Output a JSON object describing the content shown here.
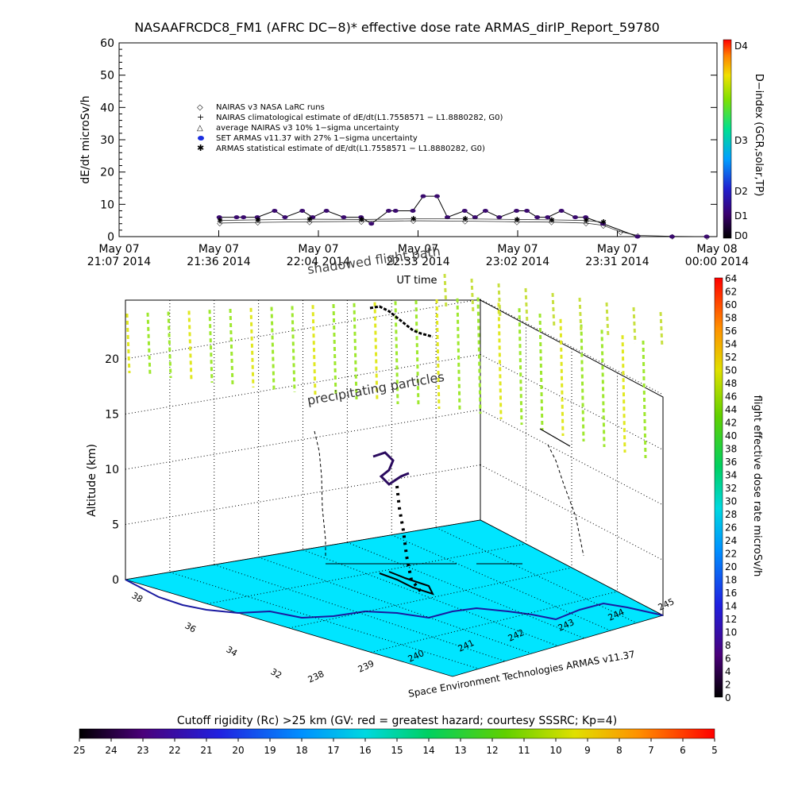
{
  "header": {
    "title": "NASAAFRCDC8_FM1 (AFRC DC−8)* effective dose rate ARMAS_dirIP_Report_59780"
  },
  "top_chart": {
    "ylabel": "dE/dt microSv/h",
    "xlabel": "UT time",
    "y_ticks": [
      "0",
      "10",
      "20",
      "30",
      "40",
      "50",
      "60"
    ],
    "x_ticks": [
      {
        "l1": "May 07",
        "l2": "21:07 2014"
      },
      {
        "l1": "May 07",
        "l2": "21:36 2014"
      },
      {
        "l1": "May 07",
        "l2": "22:04 2014"
      },
      {
        "l1": "May 07",
        "l2": "22:33 2014"
      },
      {
        "l1": "May 07",
        "l2": "23:02 2014"
      },
      {
        "l1": "May 07",
        "l2": "23:31 2014"
      },
      {
        "l1": "May 08",
        "l2": "00:00 2014"
      }
    ],
    "legend": [
      "NAIRAS v3 NASA LaRC runs",
      "NAIRAS climatological estimate of dE/dt(L1.7558571 − L1.8880282, G0)",
      "average NAIRAS v3 10% 1−sigma uncertainty",
      "SET ARMAS v11.37 with 27% 1−sigma uncertainty",
      "ARMAS statistical estimate of dE/dt(L1.7558571 − L1.8880282, G0)"
    ],
    "dindex_label": "D−index (GCR,solar,TP)",
    "dindex_ticks": [
      "D4",
      "D3",
      "D2",
      "D1",
      "D0"
    ],
    "overlay_labels": [
      "shadowed flight path"
    ]
  },
  "scene": {
    "altitude_label": "Altitude (km)",
    "altitude_ticks": [
      "0",
      "5",
      "10",
      "15",
      "20"
    ],
    "lat_ticks": [
      "38",
      "36",
      "34",
      "32"
    ],
    "lon_ticks": [
      "238",
      "239",
      "240",
      "241",
      "242",
      "243",
      "244",
      "245"
    ],
    "annotation": "precipitating particles",
    "credit": "Space Environment Technologies ARMAS v11.37",
    "dose_label": "flight effective dose rate microSv/h",
    "dose_ticks": [
      "0",
      "2",
      "4",
      "6",
      "8",
      "10",
      "12",
      "14",
      "16",
      "18",
      "20",
      "22",
      "24",
      "26",
      "28",
      "30",
      "32",
      "34",
      "36",
      "38",
      "40",
      "42",
      "44",
      "46",
      "48",
      "50",
      "52",
      "54",
      "56",
      "58",
      "60",
      "62",
      "64"
    ]
  },
  "rigidity": {
    "title": "Cutoff rigidity (Rc) >25 km (GV: red = greatest hazard; courtesy SSSRC; Kp=4)",
    "ticks": [
      "25",
      "24",
      "23",
      "22",
      "21",
      "20",
      "19",
      "18",
      "17",
      "16",
      "15",
      "14",
      "13",
      "12",
      "11",
      "10",
      "9",
      "8",
      "7",
      "6",
      "5"
    ]
  },
  "colors": {
    "sea": "#00e5ff",
    "sea_dark": "#00a0c0",
    "coast": "#1a1aa0",
    "precip": "#9ee82e",
    "armas_points": "#3a0a6e",
    "flight_path": "#000000"
  },
  "chart_data": [
    {
      "type": "line",
      "title": "NASAAFRCDC8_FM1 (AFRC DC−8)* effective dose rate ARMAS_dirIP_Report_59780",
      "xlabel": "UT time",
      "ylabel": "dE/dt microSv/h",
      "x_units": "minutes after May 07 21:07 UT",
      "ylim": [
        0,
        60
      ],
      "xlim": [
        0,
        173
      ],
      "y_ticks": [
        0,
        10,
        20,
        30,
        40,
        50,
        60
      ],
      "series": [
        {
          "name": "NAIRAS v3 NASA LaRC runs",
          "x": [
            29,
            40,
            55,
            70,
            85,
            100,
            115,
            125,
            135,
            140,
            145,
            150,
            160,
            170
          ],
          "y": [
            4.2,
            4.4,
            4.6,
            4.7,
            4.9,
            4.8,
            4.6,
            4.5,
            4.2,
            3.5,
            1.5,
            0.4,
            0.1,
            0.0
          ]
        },
        {
          "name": "SET ARMAS v11.37 with 27% 1−sigma uncertainty",
          "x": [
            29,
            34,
            36,
            40,
            45,
            48,
            53,
            56,
            60,
            65,
            70,
            73,
            78,
            80,
            85,
            88,
            92,
            95,
            100,
            103,
            106,
            110,
            115,
            118,
            121,
            124,
            128,
            132,
            135,
            140,
            150,
            160,
            170
          ],
          "y": [
            6,
            6,
            6,
            6,
            8,
            6,
            8,
            6,
            8,
            6,
            6,
            4,
            8,
            8,
            8,
            12.5,
            12.5,
            6,
            8,
            6,
            8,
            6,
            8,
            8,
            6,
            6,
            8,
            6,
            6,
            4,
            0,
            0,
            0
          ]
        },
        {
          "name": "ARMAS statistical estimate of dE/dt(L1.7558571 − L1.8880282, G0)",
          "x": [
            29,
            40,
            55,
            70,
            85,
            100,
            115,
            125,
            135,
            140
          ],
          "y": [
            5,
            5.2,
            5.4,
            5.3,
            5.5,
            5.5,
            5.3,
            5.2,
            5.0,
            4.5
          ]
        }
      ],
      "dindex_axis": {
        "label": "D−index (GCR,solar,TP)",
        "ticks": [
          "D0",
          "D1",
          "D2",
          "D3",
          "D4"
        ]
      }
    },
    {
      "type": "scatter",
      "title": "",
      "zlabel": "Altitude (km)",
      "z_ticks": [
        0,
        5,
        10,
        15,
        20
      ],
      "lat_ticks": [
        32,
        34,
        36,
        38
      ],
      "lon_ticks": [
        238,
        239,
        240,
        241,
        242,
        243,
        244,
        245
      ],
      "annotation": "precipitating particles",
      "colorbar": {
        "label": "flight effective dose rate microSv/h",
        "range": [
          0,
          64
        ]
      }
    },
    {
      "type": "heatmap",
      "title": "Cutoff rigidity (Rc) >25 km (GV: red = greatest hazard; courtesy SSSRC; Kp=4)",
      "colorbar_ticks": [
        25,
        24,
        23,
        22,
        21,
        20,
        19,
        18,
        17,
        16,
        15,
        14,
        13,
        12,
        11,
        10,
        9,
        8,
        7,
        6,
        5
      ]
    }
  ]
}
